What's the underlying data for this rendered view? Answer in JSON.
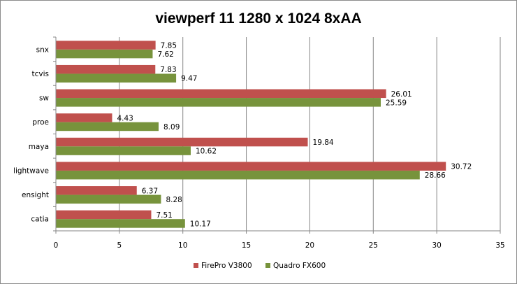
{
  "chart_data": {
    "type": "bar",
    "orientation": "horizontal",
    "title": "viewperf 11 1280 x 1024 8xAA",
    "xlabel": "",
    "ylabel": "",
    "categories": [
      "snx",
      "tcvis",
      "sw",
      "proe",
      "maya",
      "lightwave",
      "ensight",
      "catia"
    ],
    "series": [
      {
        "name": "FirePro V3800",
        "color": "#c0504d",
        "values": [
          7.85,
          7.83,
          26.01,
          4.43,
          19.84,
          30.72,
          6.37,
          7.51
        ]
      },
      {
        "name": "Quadro FX600",
        "color": "#77933c",
        "values": [
          7.62,
          9.47,
          25.59,
          8.09,
          10.62,
          28.66,
          8.28,
          10.17
        ]
      }
    ],
    "value_labels": [
      [
        "7.85",
        "7.83",
        "26.01",
        "4.43",
        "19.84",
        "30.72",
        "6.37",
        "7.51"
      ],
      [
        "7.62",
        "9.47",
        "25.59",
        "8.09",
        "10.62",
        "28.66",
        "8.28",
        "10.17"
      ]
    ],
    "xlim": [
      0,
      35
    ],
    "xticks": [
      "0",
      "5",
      "10",
      "15",
      "20",
      "25",
      "30",
      "35"
    ],
    "grid": true,
    "legend_position": "bottom"
  }
}
